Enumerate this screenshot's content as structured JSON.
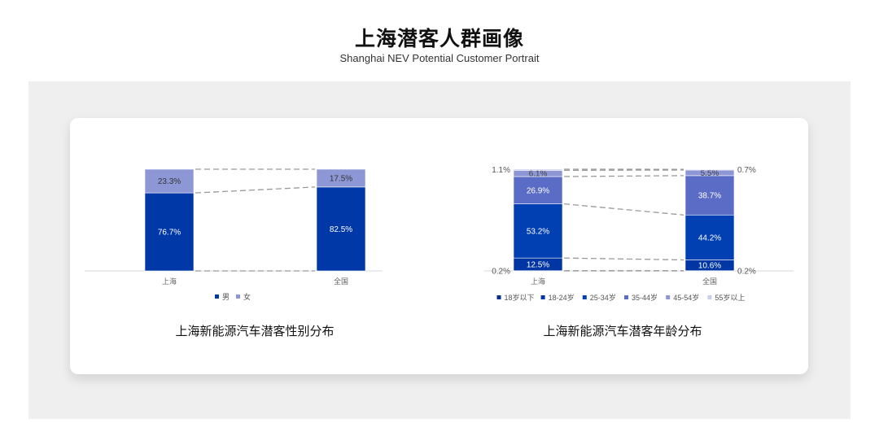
{
  "header": {
    "title": "上海潜客人群画像",
    "subtitle": "Shanghai NEV Potential Customer Portrait"
  },
  "chart_data": [
    {
      "type": "bar",
      "stacked": true,
      "percent": true,
      "caption": "上海新能源汽车潜客性别分布",
      "categories": [
        "上海",
        "全国"
      ],
      "series": [
        {
          "name": "男",
          "values": [
            76.7,
            82.5
          ],
          "color": "#0038a8",
          "label_color": "#ffffff"
        },
        {
          "name": "女",
          "values": [
            23.3,
            17.5
          ],
          "color": "#8e97d6",
          "label_color": "#333333"
        }
      ],
      "ylim": [
        0,
        100
      ],
      "legend": "bottom",
      "grid": false,
      "connector_lines": "dashed"
    },
    {
      "type": "bar",
      "stacked": true,
      "percent": true,
      "caption": "上海新能源汽车潜客年龄分布",
      "categories": [
        "上海",
        "全国"
      ],
      "series": [
        {
          "name": "18岁以下",
          "values": [
            0.2,
            0.2
          ],
          "color": "#0a2d8c",
          "label_color": "#555555"
        },
        {
          "name": "18-24岁",
          "values": [
            12.5,
            10.6
          ],
          "color": "#0036a3",
          "label_color": "#ffffff"
        },
        {
          "name": "25-34岁",
          "values": [
            53.2,
            44.2
          ],
          "color": "#0040b3",
          "label_color": "#ffffff"
        },
        {
          "name": "35-44岁",
          "values": [
            26.9,
            38.7
          ],
          "color": "#5a6cc6",
          "label_color": "#ffffff"
        },
        {
          "name": "45-54岁",
          "values": [
            6.1,
            5.5
          ],
          "color": "#8e97d6",
          "label_color": "#444444"
        },
        {
          "name": "55岁以上",
          "values": [
            1.1,
            0.7
          ],
          "color": "#c9cdea",
          "label_color": "#444444"
        }
      ],
      "ylim": [
        0,
        100
      ],
      "legend": "bottom",
      "grid": false,
      "connector_lines": "dashed"
    }
  ]
}
